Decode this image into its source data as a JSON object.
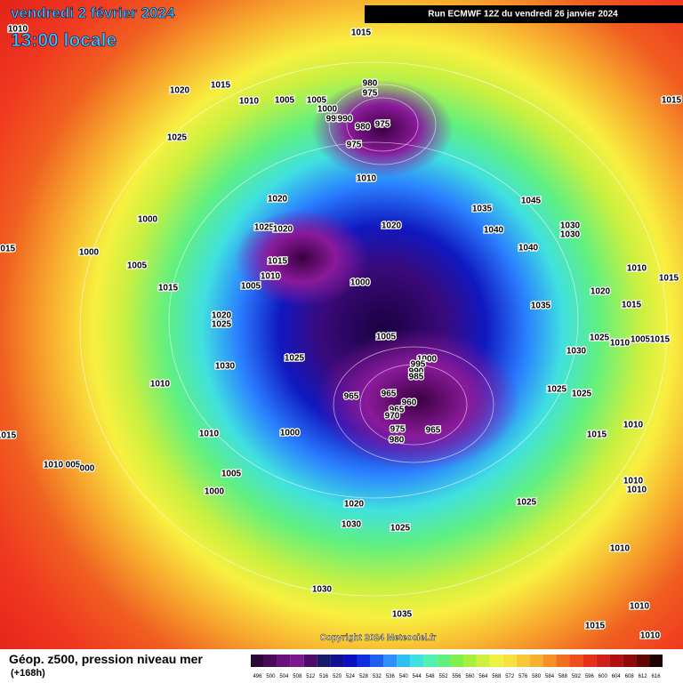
{
  "header": {
    "date": "vendredi 2 février 2024",
    "time": "13:00 locale",
    "run": "Run ECMWF 12Z du vendredi 26 janvier 2024",
    "copyright": "Copyright 2024 Meteociel.fr",
    "product": "Géop. z500, pression niveau mer",
    "lead": "(+168h)"
  },
  "isobar_labels": [
    "1010",
    "1015",
    "1020",
    "1015",
    "1010",
    "1005",
    "1005",
    "1000",
    "995",
    "990",
    "980",
    "975",
    "980",
    "975",
    "975",
    "1010",
    "1025",
    "1000",
    "1000",
    "1005",
    "1015",
    "1015",
    "1020",
    "1025",
    "1020",
    "1015",
    "1010",
    "1005",
    "1000",
    "1020",
    "1035",
    "1045",
    "1040",
    "1040",
    "1030",
    "1030",
    "1035",
    "1010",
    "1015",
    "1020",
    "1015",
    "1025",
    "1010",
    "1005",
    "1015",
    "1020",
    "1025",
    "1030",
    "1025",
    "1005",
    "1010",
    "1000",
    "995",
    "990",
    "985",
    "965",
    "965",
    "960",
    "965",
    "970",
    "975",
    "980",
    "965",
    "1000",
    "1010",
    "1030",
    "1025",
    "1025",
    "1015",
    "1010",
    "1015",
    "1010",
    "005",
    "000",
    "1005",
    "1000",
    "1020",
    "1030",
    "1025",
    "1025",
    "1010",
    "1010",
    "1030",
    "1035",
    "1010",
    "1010",
    "1015",
    "1010",
    "1015"
  ],
  "colorbar": {
    "labels": [
      496,
      500,
      504,
      508,
      512,
      516,
      520,
      524,
      528,
      532,
      536,
      540,
      544,
      548,
      552,
      556,
      560,
      564,
      568,
      572,
      576,
      580,
      584,
      588,
      592,
      596,
      600,
      604,
      608,
      612,
      616
    ],
    "colors": [
      "#2a0838",
      "#4a0a5a",
      "#6a107a",
      "#7a1890",
      "#500a6a",
      "#1a1a6a",
      "#101090",
      "#0a10c0",
      "#1030e0",
      "#2060f0",
      "#3090ff",
      "#30c0f0",
      "#40e0e0",
      "#50f0b0",
      "#60f080",
      "#80f050",
      "#a8f040",
      "#d0f040",
      "#f0f040",
      "#f8e040",
      "#f8c838",
      "#f8b030",
      "#f89028",
      "#f07020",
      "#f05020",
      "#e83018",
      "#d02018",
      "#b01010",
      "#900808",
      "#600404",
      "#200000"
    ]
  }
}
